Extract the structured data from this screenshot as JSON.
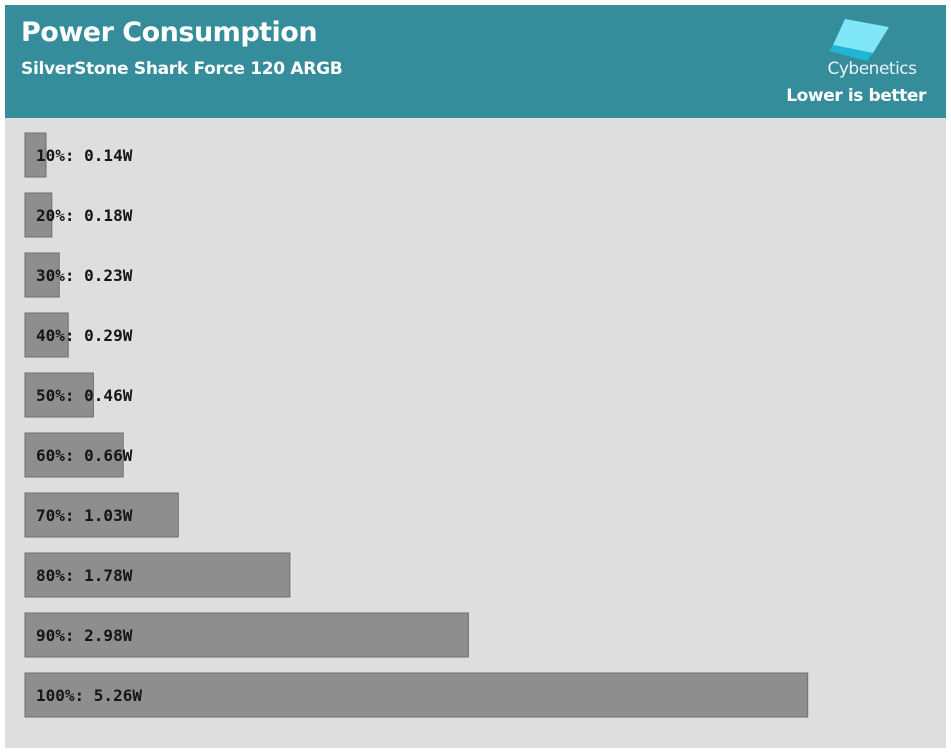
{
  "header": {
    "title": "Power Consumption",
    "subtitle": "SilverStone Shark Force 120 ARGB",
    "logo_text": "Cybenetics",
    "note": "Lower is better"
  },
  "colors": {
    "header_bg": "#358c9a",
    "plot_bg": "#dedede",
    "bar_fill": "#8e8e8e",
    "bar_stroke": "#6f6f6f",
    "logo_light": "#7fe7f7",
    "logo_dark": "#22b5d2"
  },
  "chart_data": {
    "type": "bar",
    "orientation": "horizontal",
    "title": "Power Consumption",
    "subtitle": "SilverStone Shark Force 120 ARGB",
    "unit": "W",
    "categories": [
      "10%",
      "20%",
      "30%",
      "40%",
      "50%",
      "60%",
      "70%",
      "80%",
      "90%",
      "100%"
    ],
    "values": [
      0.14,
      0.18,
      0.23,
      0.29,
      0.46,
      0.66,
      1.03,
      1.78,
      2.98,
      5.26
    ],
    "labels": [
      "10%: 0.14W",
      "20%: 0.18W",
      "30%: 0.23W",
      "40%: 0.29W",
      "50%: 0.46W",
      "60%: 0.66W",
      "70%: 1.03W",
      "80%: 1.78W",
      "90%: 2.98W",
      "100%: 5.26W"
    ],
    "xlim": [
      0,
      5.6
    ],
    "grid": false,
    "legend": "none"
  }
}
